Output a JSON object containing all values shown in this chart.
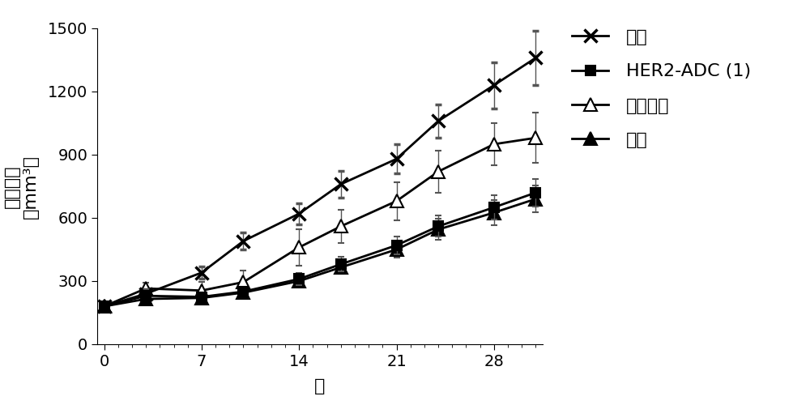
{
  "title": "",
  "xlabel": "天",
  "ylabel_line1": "肿癌体积",
  "ylabel_line2": "（mm³）",
  "xlim": [
    -0.5,
    31.5
  ],
  "ylim": [
    0,
    1500
  ],
  "yticks": [
    0,
    300,
    600,
    900,
    1200,
    1500
  ],
  "xticks": [
    0,
    7,
    14,
    21,
    28
  ],
  "series": [
    {
      "label": "对照",
      "marker": "x",
      "x": [
        0,
        3,
        7,
        10,
        14,
        17,
        21,
        24,
        28,
        31
      ],
      "y": [
        180,
        240,
        340,
        490,
        620,
        760,
        880,
        1060,
        1230,
        1360
      ],
      "yerr": [
        10,
        20,
        30,
        40,
        50,
        65,
        70,
        80,
        110,
        130
      ],
      "mfc": "none",
      "mec": "#000000",
      "ms": 10
    },
    {
      "label": "HER2-ADC (1)",
      "marker": "s",
      "x": [
        0,
        3,
        7,
        10,
        14,
        17,
        21,
        24,
        28,
        31
      ],
      "y": [
        180,
        230,
        225,
        250,
        310,
        380,
        470,
        560,
        650,
        720
      ],
      "yerr": [
        10,
        18,
        18,
        22,
        28,
        35,
        42,
        50,
        58,
        65
      ],
      "mfc": "#000000",
      "mec": "#000000",
      "ms": 8
    },
    {
      "label": "奥拉帕尼",
      "marker": "^",
      "x": [
        0,
        3,
        7,
        10,
        14,
        17,
        21,
        24,
        28,
        31
      ],
      "y": [
        180,
        265,
        255,
        295,
        460,
        560,
        680,
        820,
        950,
        980
      ],
      "yerr": [
        10,
        28,
        40,
        55,
        85,
        80,
        90,
        100,
        100,
        120
      ],
      "mfc": "white",
      "mec": "#000000",
      "ms": 10
    },
    {
      "label": "组合",
      "marker": "^",
      "x": [
        0,
        3,
        7,
        10,
        14,
        17,
        21,
        24,
        28,
        31
      ],
      "y": [
        180,
        215,
        220,
        245,
        300,
        365,
        450,
        545,
        625,
        690
      ],
      "yerr": [
        10,
        15,
        16,
        20,
        26,
        32,
        40,
        50,
        58,
        63
      ],
      "mfc": "#000000",
      "mec": "#000000",
      "ms": 10
    }
  ],
  "color": "#000000",
  "linewidth": 2.0,
  "legend_fontsize": 16,
  "axis_fontsize": 16,
  "tick_fontsize": 14,
  "background_color": "#ffffff"
}
